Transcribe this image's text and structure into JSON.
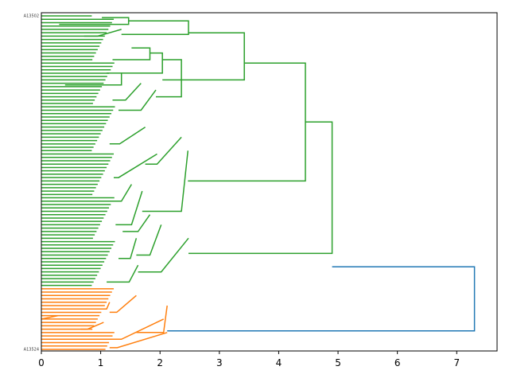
{
  "chart_data": {
    "type": "dendrogram",
    "orientation": "right",
    "title": "",
    "xlabel": "",
    "ylabel": "",
    "xlim": [
      0,
      7.68
    ],
    "xticks": [
      "0",
      "1",
      "2",
      "3",
      "4",
      "5",
      "6",
      "7"
    ],
    "colors": {
      "green": "#2ca02c",
      "orange": "#ff7f0e",
      "blue": "#1f77b4"
    },
    "leaf_count": 100,
    "leaf_labels_first": "A13502",
    "leaf_labels_last": "A13524",
    "links": [
      {
        "c": "blue",
        "x": [
          4.9,
          7.3,
          7.3,
          2.12
        ],
        "y": [
          74.5,
          74.5,
          93.5,
          93.5
        ]
      },
      {
        "c": "green",
        "x": [
          4.45,
          4.9,
          4.9,
          2.48
        ],
        "y": [
          31.5,
          31.5,
          70.5,
          70.5
        ]
      },
      {
        "c": "green",
        "x": [
          3.42,
          4.45,
          4.45,
          2.47
        ],
        "y": [
          14,
          14,
          49,
          49
        ]
      },
      {
        "c": "green",
        "x": [
          2.48,
          3.42,
          3.42,
          2.04
        ],
        "y": [
          5,
          5,
          19,
          19
        ]
      },
      {
        "c": "green",
        "x": [
          1.47,
          2.48,
          2.48,
          1.35
        ],
        "y": [
          1.5,
          1.5,
          5.5,
          5.5
        ]
      },
      {
        "c": "green",
        "x": [
          1.02,
          1.47,
          1.47,
          0.3
        ],
        "y": [
          0.5,
          0.5,
          2.5,
          2.5
        ]
      },
      {
        "c": "green",
        "x": [
          1.35,
          1.35,
          0.95,
          0.72
        ],
        "y": [
          4,
          4,
          6,
          6
        ]
      },
      {
        "c": "green",
        "x": [
          2.04,
          2.36,
          2.36,
          1.93
        ],
        "y": [
          13,
          13,
          24,
          24
        ]
      },
      {
        "c": "green",
        "x": [
          1.83,
          2.04,
          2.04,
          1.35
        ],
        "y": [
          11,
          11,
          17,
          17
        ]
      },
      {
        "c": "green",
        "x": [
          1.52,
          1.83,
          1.83,
          1.2
        ],
        "y": [
          9.5,
          9.5,
          13,
          13
        ]
      },
      {
        "c": "green",
        "x": [
          1.93,
          1.93,
          1.68,
          1.3
        ],
        "y": [
          22,
          22,
          28,
          28
        ]
      },
      {
        "c": "green",
        "x": [
          1.68,
          1.68,
          1.42,
          1.2
        ],
        "y": [
          20,
          20,
          25,
          25
        ]
      },
      {
        "c": "green",
        "x": [
          0.4,
          1.35,
          1.35,
          1.1
        ],
        "y": [
          20.5,
          20.5,
          17,
          17
        ]
      },
      {
        "c": "green",
        "x": [
          2.47,
          2.47,
          2.36,
          1.7
        ],
        "y": [
          40,
          40,
          58,
          58
        ]
      },
      {
        "c": "green",
        "x": [
          2.36,
          2.36,
          1.95,
          1.75
        ],
        "y": [
          36,
          36,
          44,
          44
        ]
      },
      {
        "c": "green",
        "x": [
          1.75,
          1.75,
          1.32,
          1.15
        ],
        "y": [
          33,
          33,
          38,
          38
        ]
      },
      {
        "c": "green",
        "x": [
          1.95,
          1.95,
          1.3,
          1.22
        ],
        "y": [
          41,
          41,
          48,
          48
        ]
      },
      {
        "c": "green",
        "x": [
          1.7,
          1.7,
          1.52,
          1.25
        ],
        "y": [
          52,
          52,
          62,
          62
        ]
      },
      {
        "c": "green",
        "x": [
          1.52,
          1.52,
          1.35,
          1.15
        ],
        "y": [
          50,
          50,
          55,
          55
        ]
      },
      {
        "c": "green",
        "x": [
          2.48,
          2.48,
          2.02,
          1.63
        ],
        "y": [
          66,
          66,
          76,
          76
        ]
      },
      {
        "c": "green",
        "x": [
          2.02,
          2.02,
          1.83,
          1.6
        ],
        "y": [
          62,
          62,
          71,
          71
        ]
      },
      {
        "c": "green",
        "x": [
          1.83,
          1.83,
          1.63,
          1.37
        ],
        "y": [
          59,
          59,
          64,
          64
        ]
      },
      {
        "c": "green",
        "x": [
          1.6,
          1.6,
          1.5,
          1.3
        ],
        "y": [
          66,
          66,
          72,
          72
        ]
      },
      {
        "c": "green",
        "x": [
          1.63,
          1.63,
          1.48,
          1.1
        ],
        "y": [
          74,
          74,
          79,
          79
        ]
      },
      {
        "c": "orange",
        "x": [
          2.12,
          2.12,
          2.06,
          1.6
        ],
        "y": [
          86,
          86,
          94,
          94
        ]
      },
      {
        "c": "orange",
        "x": [
          1.6,
          1.6,
          1.27,
          1.15
        ],
        "y": [
          83,
          83,
          88,
          88
        ]
      },
      {
        "c": "orange",
        "x": [
          2.06,
          2.06,
          1.35,
          1.05
        ],
        "y": [
          90,
          90,
          96,
          96
        ]
      },
      {
        "c": "orange",
        "x": [
          2.12,
          2.12,
          1.28,
          1.15
        ],
        "y": [
          94,
          94,
          98.5,
          98.5
        ]
      },
      {
        "c": "orange",
        "x": [
          1.05,
          1.05,
          0.78,
          0.66
        ],
        "y": [
          91,
          91,
          93,
          93
        ]
      },
      {
        "c": "orange",
        "x": [
          1.15,
          1.15,
          1.1,
          0.8
        ],
        "y": [
          85,
          85,
          87,
          87
        ]
      },
      {
        "c": "orange",
        "x": [
          0.28,
          0.28,
          0.0,
          0.0
        ],
        "y": [
          89,
          89,
          90,
          90
        ]
      }
    ]
  }
}
